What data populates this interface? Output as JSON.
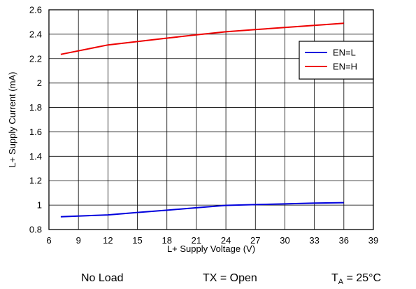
{
  "chart_data": {
    "type": "line",
    "title": "",
    "xlabel": "L+ Supply Voltage (V)",
    "ylabel": "L+ Supply Current  (mA)",
    "xlim": [
      6,
      39
    ],
    "ylim": [
      0.8,
      2.6
    ],
    "xticks": [
      "6",
      "9",
      "12",
      "15",
      "18",
      "21",
      "24",
      "27",
      "30",
      "33",
      "36",
      "39"
    ],
    "yticks": [
      "0.8",
      "1",
      "1.2",
      "1.4",
      "1.6",
      "1.8",
      "2",
      "2.2",
      "2.4",
      "2.6"
    ],
    "grid": true,
    "legend_position": "right",
    "series": [
      {
        "name": "EN=L",
        "color": "#0000dd",
        "x": [
          7.2,
          12,
          15,
          18,
          21,
          24,
          27,
          30,
          33,
          36
        ],
        "y": [
          0.905,
          0.92,
          0.94,
          0.958,
          0.978,
          0.998,
          1.004,
          1.01,
          1.016,
          1.02
        ]
      },
      {
        "name": "EN=H",
        "color": "#ee0000",
        "x": [
          7.2,
          12,
          15,
          18,
          21,
          24,
          27,
          30,
          33,
          36
        ],
        "y": [
          2.235,
          2.312,
          2.34,
          2.368,
          2.395,
          2.42,
          2.438,
          2.455,
          2.472,
          2.49
        ]
      }
    ]
  },
  "footer": {
    "load": "No Load",
    "tx": "TX = Open",
    "ta_prefix": "T",
    "ta_sub": "A",
    "ta_value": " = 25°C"
  }
}
